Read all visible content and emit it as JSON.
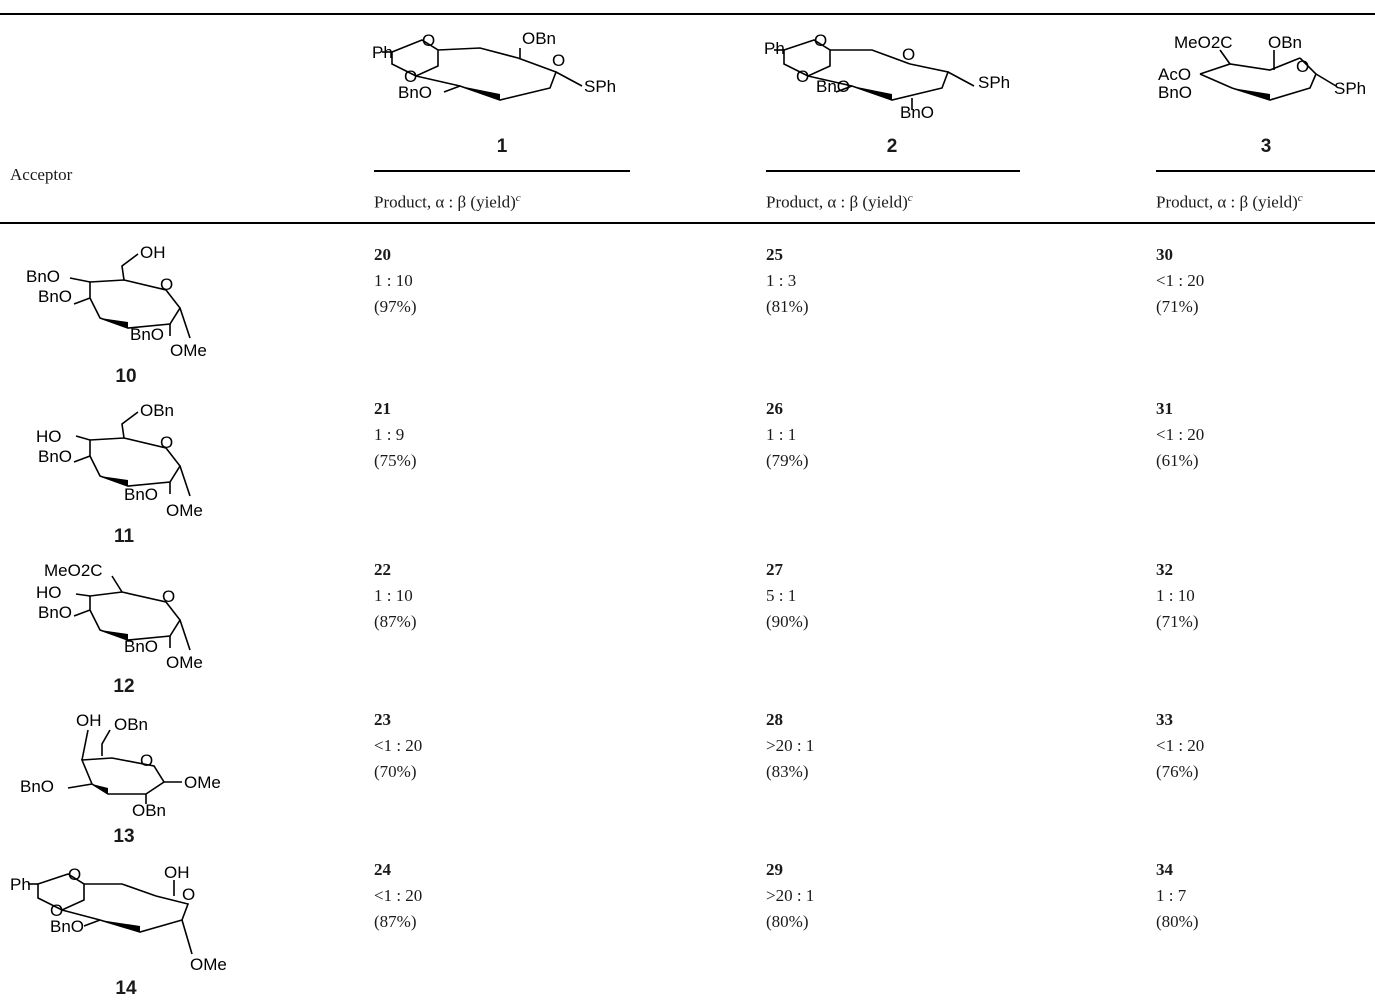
{
  "header": {
    "acceptor_label": "Acceptor",
    "product_col_header": "Product, α : β (yield)",
    "footnote_mark": "c"
  },
  "donors": [
    {
      "id": "1",
      "labels": [
        "Ph",
        "O",
        "O",
        "OBn",
        "O",
        "BnO",
        "SPh"
      ]
    },
    {
      "id": "2",
      "labels": [
        "Ph",
        "O",
        "O",
        "O",
        "BnO",
        "SPh",
        "BnO"
      ]
    },
    {
      "id": "3",
      "labels": [
        "MeO2C",
        "OBn",
        "AcO",
        "BnO",
        "O",
        "SPh"
      ]
    }
  ],
  "acceptors": [
    {
      "id": "10",
      "labels": [
        "OH",
        "O",
        "BnO",
        "BnO",
        "BnO",
        "OMe"
      ]
    },
    {
      "id": "11",
      "labels": [
        "OBn",
        "O",
        "HO",
        "BnO",
        "BnO",
        "OMe"
      ]
    },
    {
      "id": "12",
      "labels": [
        "MeO2C",
        "O",
        "HO",
        "BnO",
        "BnO",
        "OMe"
      ]
    },
    {
      "id": "13",
      "labels": [
        "OH",
        "OBn",
        "O",
        "BnO",
        "OMe",
        "OBn"
      ]
    },
    {
      "id": "14",
      "labels": [
        "Ph",
        "O",
        "OH",
        "O",
        "O",
        "BnO",
        "OMe"
      ]
    }
  ],
  "rows": [
    {
      "cells": [
        {
          "product": "20",
          "ratio": "1 : 10",
          "yield": "(97%)"
        },
        {
          "product": "25",
          "ratio": "1 : 3",
          "yield": "(81%)"
        },
        {
          "product": "30",
          "ratio": "<1 : 20",
          "yield": "(71%)"
        }
      ]
    },
    {
      "cells": [
        {
          "product": "21",
          "ratio": "1 : 9",
          "yield": "(75%)"
        },
        {
          "product": "26",
          "ratio": "1 : 1",
          "yield": "(79%)"
        },
        {
          "product": "31",
          "ratio": "<1 : 20",
          "yield": "(61%)"
        }
      ]
    },
    {
      "cells": [
        {
          "product": "22",
          "ratio": "1 : 10",
          "yield": "(87%)"
        },
        {
          "product": "27",
          "ratio": "5 : 1",
          "yield": "(90%)"
        },
        {
          "product": "32",
          "ratio": "1 : 10",
          "yield": "(71%)"
        }
      ]
    },
    {
      "cells": [
        {
          "product": "23",
          "ratio": "<1 : 20",
          "yield": "(70%)"
        },
        {
          "product": "28",
          "ratio": ">20 : 1",
          "yield": "(83%)"
        },
        {
          "product": "33",
          "ratio": "<1 : 20",
          "yield": "(76%)"
        }
      ]
    },
    {
      "cells": [
        {
          "product": "24",
          "ratio": "<1 : 20",
          "yield": "(87%)"
        },
        {
          "product": "29",
          "ratio": ">20 : 1",
          "yield": "(80%)"
        },
        {
          "product": "34",
          "ratio": "1 : 7",
          "yield": "(80%)"
        }
      ]
    }
  ]
}
